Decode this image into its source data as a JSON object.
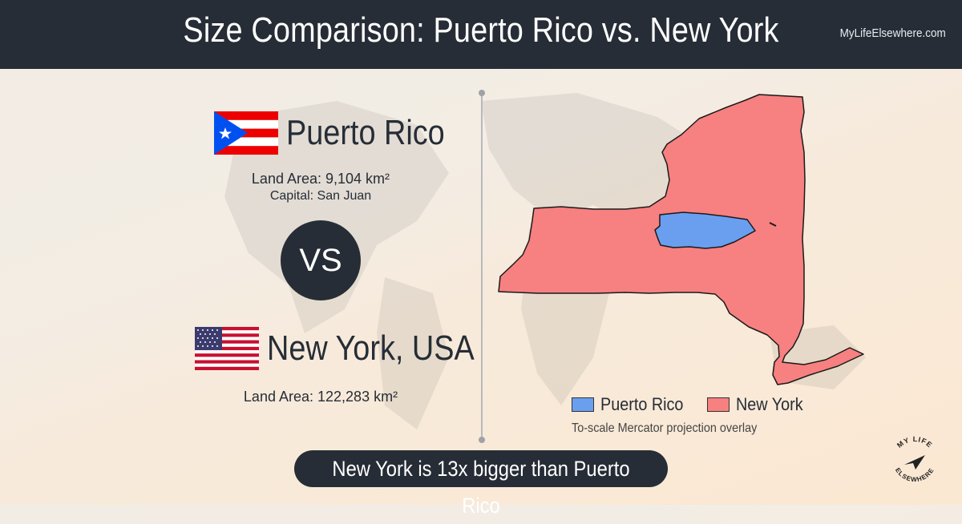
{
  "header": {
    "title": "Size Comparison: Puerto Rico vs. New York",
    "brand": "MyLifeElsewhere.com"
  },
  "country1": {
    "name": "Puerto Rico",
    "land_area_label": "Land Area:",
    "land_area_value": "9,104 km²",
    "capital_label": "Capital:",
    "capital_value": "San Juan",
    "flag_icon": "puerto-rico-flag-icon"
  },
  "vs_label": "VS",
  "country2": {
    "name": "New York, USA",
    "land_area_label": "Land Area:",
    "land_area_value": "122,283 km²",
    "flag_icon": "usa-flag-icon"
  },
  "map": {
    "legend": [
      {
        "label": "Puerto Rico",
        "color": "#6a9ff0"
      },
      {
        "label": "New York",
        "color": "#f78080"
      }
    ],
    "note": "To-scale Mercator projection overlay"
  },
  "banner": "New York is 13x bigger than Puerto Rico",
  "logo": {
    "text_top": "MY LIFE",
    "text_bottom": "ELSEWHERE"
  }
}
